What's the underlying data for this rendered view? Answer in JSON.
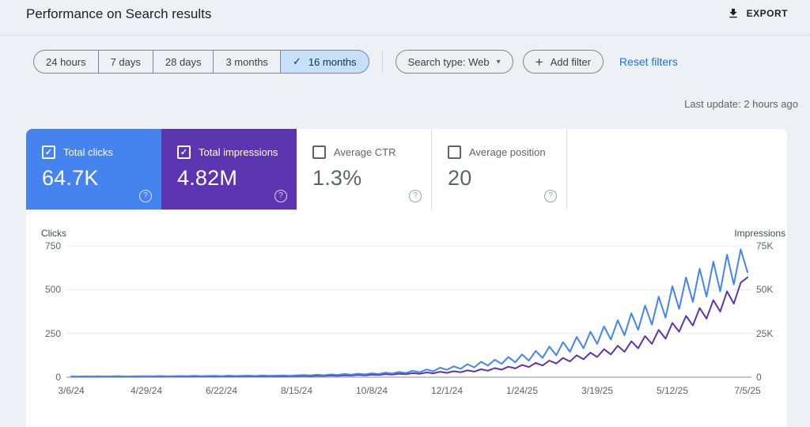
{
  "header": {
    "title": "Performance on Search results",
    "export_label": "EXPORT"
  },
  "filters": {
    "date_ranges": [
      {
        "label": "24 hours",
        "selected": false
      },
      {
        "label": "7 days",
        "selected": false
      },
      {
        "label": "28 days",
        "selected": false
      },
      {
        "label": "3 months",
        "selected": false
      },
      {
        "label": "16 months",
        "selected": true
      }
    ],
    "search_type": "Search type: Web",
    "add_filter": "Add filter",
    "reset_filters": "Reset filters",
    "last_update": "Last update: 2 hours ago"
  },
  "icons": {
    "checkmark": "✓",
    "chevron_down": "▾",
    "plus": "+",
    "help": "?"
  },
  "colors": {
    "clicks_blue": "#4583ee",
    "impressions_purple": "#5e35b1",
    "link_blue": "#1a73e8",
    "selected_chip_bg": "#c5e0f8",
    "gridline": "#e8eaed",
    "baseline": "#8a9096"
  },
  "metrics": [
    {
      "label": "Total clicks",
      "value": "64.7K",
      "checked": true,
      "bg": "#4583ee"
    },
    {
      "label": "Total impressions",
      "value": "4.82M",
      "checked": true,
      "bg": "#5e35b1"
    },
    {
      "label": "Average CTR",
      "value": "1.3%",
      "checked": false,
      "bg": null
    },
    {
      "label": "Average position",
      "value": "20",
      "checked": false,
      "bg": null
    }
  ],
  "chart_data": {
    "type": "line",
    "title": "",
    "x_labels": [
      "3/6/24",
      "4/29/24",
      "6/22/24",
      "8/15/24",
      "10/8/24",
      "12/1/24",
      "1/24/25",
      "3/19/25",
      "5/12/25",
      "7/5/25"
    ],
    "left_axis": {
      "title": "Clicks",
      "ticks": [
        "750",
        "500",
        "250",
        "0"
      ],
      "tick_values": [
        750,
        500,
        250,
        0
      ],
      "max": 750
    },
    "right_axis": {
      "title": "Impressions",
      "ticks": [
        "75K",
        "50K",
        "25K",
        "0"
      ],
      "tick_values": [
        75000,
        50000,
        25000,
        0
      ],
      "max": 75000
    },
    "grid": true,
    "legend": "none",
    "series": [
      {
        "name": "Total clicks",
        "axis": "left",
        "color": "#4285f4",
        "values": [
          4,
          3,
          5,
          4,
          6,
          4,
          5,
          6,
          4,
          5,
          5,
          6,
          5,
          7,
          5,
          6,
          7,
          6,
          8,
          6,
          7,
          8,
          6,
          9,
          7,
          8,
          9,
          7,
          10,
          8,
          9,
          10,
          8,
          11,
          12,
          10,
          14,
          11,
          16,
          13,
          18,
          14,
          20,
          16,
          22,
          18,
          26,
          21,
          30,
          24,
          36,
          28,
          44,
          34,
          54,
          42,
          62,
          48,
          74,
          56,
          88,
          66,
          100,
          76,
          115,
          85,
          130,
          95,
          150,
          110,
          175,
          125,
          200,
          145,
          230,
          165,
          260,
          190,
          290,
          215,
          325,
          240,
          365,
          270,
          410,
          300,
          460,
          340,
          520,
          390,
          570,
          430,
          620,
          460,
          660,
          490,
          700,
          530,
          730,
          600
        ]
      },
      {
        "name": "Total impressions",
        "axis": "right",
        "color": "#5e35b1",
        "values": [
          250,
          220,
          300,
          260,
          340,
          280,
          320,
          360,
          300,
          340,
          330,
          380,
          340,
          420,
          360,
          400,
          440,
          400,
          480,
          420,
          450,
          500,
          430,
          540,
          470,
          520,
          560,
          480,
          600,
          520,
          560,
          620,
          540,
          680,
          750,
          650,
          850,
          720,
          950,
          800,
          1100,
          900,
          1300,
          1050,
          1500,
          1250,
          1750,
          1450,
          2000,
          1650,
          2300,
          1900,
          2700,
          2200,
          3100,
          2500,
          3400,
          2800,
          3900,
          3200,
          4500,
          3700,
          5200,
          4300,
          6000,
          5000,
          7000,
          5800,
          8200,
          6700,
          9500,
          7800,
          11000,
          9000,
          12500,
          10200,
          14000,
          11500,
          16000,
          13000,
          18000,
          14500,
          20500,
          16500,
          23500,
          19000,
          27000,
          22000,
          31000,
          26000,
          35000,
          29500,
          39500,
          33500,
          44000,
          37500,
          49000,
          42000,
          54000,
          57000
        ]
      }
    ]
  }
}
